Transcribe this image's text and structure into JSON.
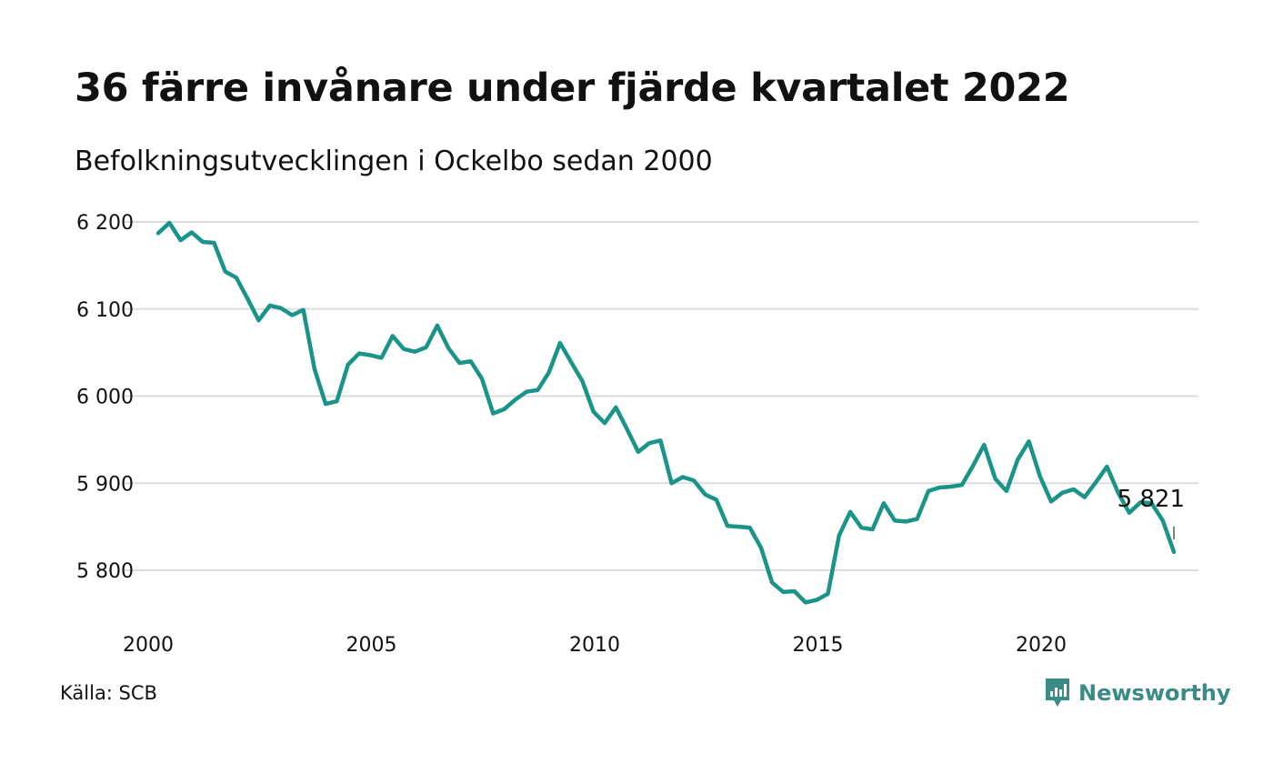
{
  "header": {
    "title": "36 färre invånare under fjärde kvartalet 2022",
    "subtitle": "Befolkningsutvecklingen i Ockelbo sedan 2000"
  },
  "footer": {
    "source": "Källa: SCB",
    "brand": "Newsworthy",
    "brand_icon": "newsworthy-logo-icon"
  },
  "colors": {
    "line": "#1a9488",
    "grid": "#dddddd",
    "brand": "#3a8a86"
  },
  "chart_data": {
    "type": "line",
    "title": "36 färre invånare under fjärde kvartalet 2022",
    "subtitle": "Befolkningsutvecklingen i Ockelbo sedan 2000",
    "xlabel": "",
    "ylabel": "",
    "grid": true,
    "legend": "none",
    "xlim": [
      2000,
      2023.7
    ],
    "ylim": [
      5745,
      6210
    ],
    "x_ticks": [
      2000,
      2005,
      2010,
      2015,
      2020
    ],
    "x_tick_labels": [
      "2000",
      "2005",
      "2010",
      "2015",
      "2020"
    ],
    "y_ticks": [
      5800,
      5900,
      6000,
      6100,
      6200
    ],
    "y_tick_labels": [
      "5 800",
      "5 900",
      "6 000",
      "6 100",
      "6 200"
    ],
    "annotation": {
      "text": "5 821",
      "x": 2022.75,
      "y": 5821
    },
    "series": [
      {
        "x": [
          2000.0,
          2000.25,
          2000.5,
          2000.75,
          2001.0,
          2001.25,
          2001.5,
          2001.75,
          2002.0,
          2002.25,
          2002.5,
          2002.75,
          2003.0,
          2003.25,
          2003.5,
          2003.75,
          2004.0,
          2004.25,
          2004.5,
          2004.75,
          2005.0,
          2005.25,
          2005.5,
          2005.75,
          2006.0,
          2006.25,
          2006.5,
          2006.75,
          2007.0,
          2007.25,
          2007.5,
          2007.75,
          2008.0,
          2008.25,
          2008.5,
          2008.75,
          2009.0,
          2009.25,
          2009.5,
          2009.75,
          2010.0,
          2010.25,
          2010.5,
          2010.75,
          2011.0,
          2011.25,
          2011.5,
          2011.75,
          2012.0,
          2012.25,
          2012.5,
          2012.75,
          2013.0,
          2013.25,
          2013.5,
          2013.75,
          2014.0,
          2014.25,
          2014.5,
          2014.75,
          2015.0,
          2015.25,
          2015.5,
          2015.75,
          2016.0,
          2016.25,
          2016.5,
          2016.75,
          2017.0,
          2017.25,
          2017.5,
          2017.75,
          2018.0,
          2018.25,
          2018.5,
          2018.75,
          2019.0,
          2019.25,
          2019.5,
          2019.75,
          2020.0,
          2020.25,
          2020.5,
          2020.75,
          2021.0,
          2021.25,
          2021.5,
          2021.75,
          2022.0,
          2022.25,
          2022.5,
          2022.75
        ],
        "values": [
          6187,
          6199,
          6179,
          6188,
          6177,
          6176,
          6143,
          6136,
          6112,
          6087,
          6104,
          6101,
          6093,
          6099,
          6031,
          5991,
          5994,
          6036,
          6049,
          6047,
          6044,
          6069,
          6054,
          6051,
          6056,
          6081,
          6055,
          6038,
          6040,
          6020,
          5980,
          5985,
          5996,
          6005,
          6007,
          6027,
          6061,
          6039,
          6017,
          5982,
          5969,
          5987,
          5962,
          5936,
          5946,
          5949,
          5900,
          5907,
          5903,
          5887,
          5881,
          5851,
          5850,
          5849,
          5826,
          5786,
          5775,
          5776,
          5763,
          5766,
          5773,
          5840,
          5867,
          5849,
          5847,
          5877,
          5857,
          5856,
          5859,
          5891,
          5895,
          5896,
          5898,
          5920,
          5944,
          5905,
          5891,
          5927,
          5948,
          5908,
          5879,
          5889,
          5893,
          5884,
          5901,
          5919,
          5889,
          5866,
          5878,
          5877,
          5857,
          5821
        ]
      }
    ]
  }
}
